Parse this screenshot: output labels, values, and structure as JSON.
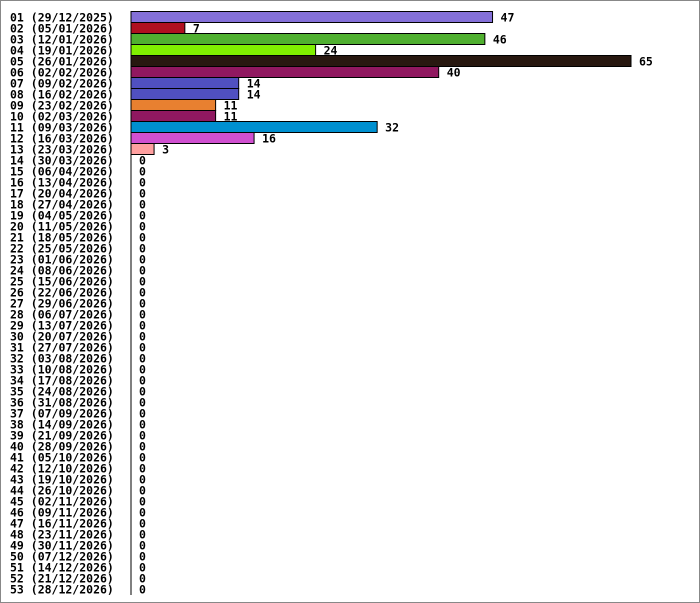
{
  "chart_data": {
    "type": "bar",
    "orientation": "horizontal",
    "categories": [
      "01 (29/12/2025)",
      "02 (05/01/2026)",
      "03 (12/01/2026)",
      "04 (19/01/2026)",
      "05 (26/01/2026)",
      "06 (02/02/2026)",
      "07 (09/02/2026)",
      "08 (16/02/2026)",
      "09 (23/02/2026)",
      "10 (02/03/2026)",
      "11 (09/03/2026)",
      "12 (16/03/2026)",
      "13 (23/03/2026)",
      "14 (30/03/2026)",
      "15 (06/04/2026)",
      "16 (13/04/2026)",
      "17 (20/04/2026)",
      "18 (27/04/2026)",
      "19 (04/05/2026)",
      "20 (11/05/2026)",
      "21 (18/05/2026)",
      "22 (25/05/2026)",
      "23 (01/06/2026)",
      "24 (08/06/2026)",
      "25 (15/06/2026)",
      "26 (22/06/2026)",
      "27 (29/06/2026)",
      "28 (06/07/2026)",
      "29 (13/07/2026)",
      "30 (20/07/2026)",
      "31 (27/07/2026)",
      "32 (03/08/2026)",
      "33 (10/08/2026)",
      "34 (17/08/2026)",
      "35 (24/08/2026)",
      "36 (31/08/2026)",
      "37 (07/09/2026)",
      "38 (14/09/2026)",
      "39 (21/09/2026)",
      "40 (28/09/2026)",
      "41 (05/10/2026)",
      "42 (12/10/2026)",
      "43 (19/10/2026)",
      "44 (26/10/2026)",
      "45 (02/11/2026)",
      "46 (09/11/2026)",
      "47 (16/11/2026)",
      "48 (23/11/2026)",
      "49 (30/11/2026)",
      "50 (07/12/2026)",
      "51 (14/12/2026)",
      "52 (21/12/2026)",
      "53 (28/12/2026)"
    ],
    "values": [
      47,
      7,
      46,
      24,
      65,
      40,
      14,
      14,
      11,
      11,
      32,
      16,
      3,
      0,
      0,
      0,
      0,
      0,
      0,
      0,
      0,
      0,
      0,
      0,
      0,
      0,
      0,
      0,
      0,
      0,
      0,
      0,
      0,
      0,
      0,
      0,
      0,
      0,
      0,
      0,
      0,
      0,
      0,
      0,
      0,
      0,
      0,
      0,
      0,
      0,
      0,
      0,
      0
    ],
    "colors": [
      "#8470d8",
      "#b01020",
      "#50b030",
      "#80f000",
      "#281810",
      "#901860",
      "#5050c0",
      "#5050c0",
      "#e88030",
      "#901860",
      "#0090d0",
      "#d050d0",
      "#ffa0a0"
    ],
    "xlim": [
      0,
      65
    ]
  }
}
